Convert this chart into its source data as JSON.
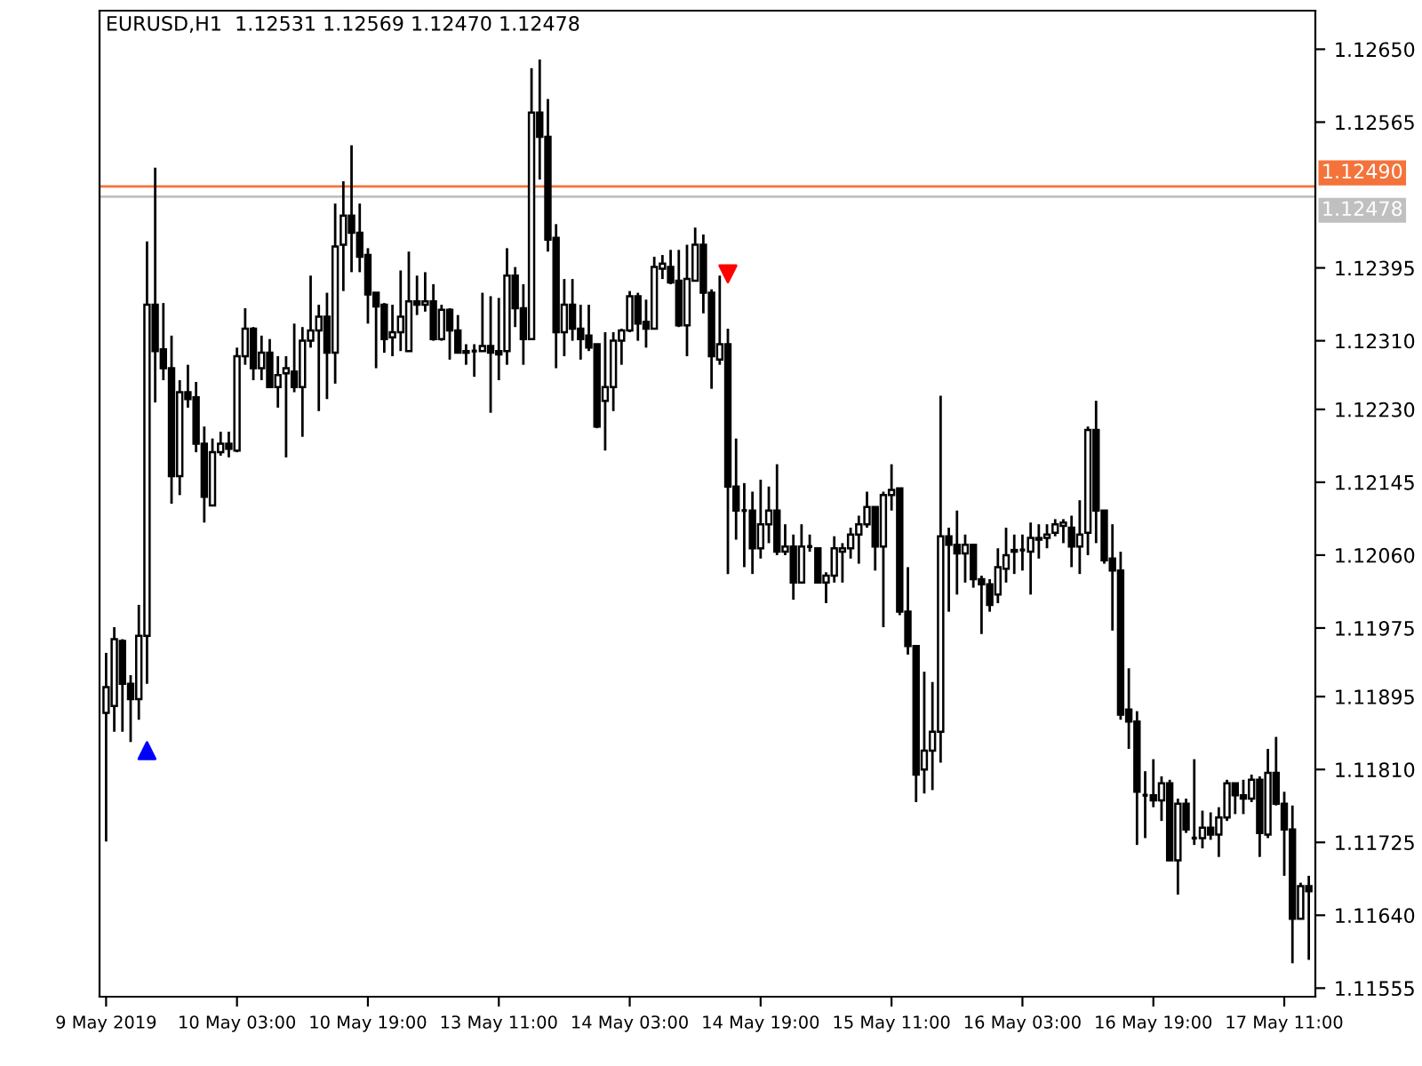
{
  "chart_data": {
    "type": "candlestick",
    "title": "EURUSD,H1  1.12531 1.12569 1.12470 1.12478",
    "categories": [
      "9 May 2019",
      null,
      null,
      null,
      null,
      null,
      null,
      null,
      null,
      null,
      null,
      null,
      null,
      null,
      null,
      null,
      "10 May 03:00",
      null,
      null,
      null,
      null,
      null,
      null,
      null,
      null,
      null,
      null,
      null,
      null,
      null,
      null,
      null,
      "10 May 19:00",
      null,
      null,
      null,
      null,
      null,
      null,
      null,
      null,
      null,
      null,
      null,
      null,
      null,
      null,
      null,
      "13 May 11:00",
      null,
      null,
      null,
      null,
      null,
      null,
      null,
      null,
      null,
      null,
      null,
      null,
      null,
      null,
      null,
      "14 May 03:00",
      null,
      null,
      null,
      null,
      null,
      null,
      null,
      null,
      null,
      null,
      null,
      null,
      null,
      null,
      null,
      "14 May 19:00",
      null,
      null,
      null,
      null,
      null,
      null,
      null,
      null,
      null,
      null,
      null,
      null,
      null,
      null,
      null,
      "15 May 11:00",
      null,
      null,
      null,
      null,
      null,
      null,
      null,
      null,
      null,
      null,
      null,
      null,
      null,
      null,
      null,
      "16 May 03:00",
      null,
      null,
      null,
      null,
      null,
      null,
      null,
      null,
      null,
      null,
      null,
      null,
      null,
      null,
      null,
      "16 May 19:00",
      null,
      null,
      null,
      null,
      null,
      null,
      null,
      null,
      null,
      null,
      null,
      null,
      null,
      null,
      null,
      "17 May 11:00",
      null,
      null,
      null
    ],
    "ohlc": [
      [
        1.11876,
        1.11946,
        1.11726,
        1.11906
      ],
      [
        1.11884,
        1.11976,
        1.11854,
        1.11962
      ],
      [
        1.1196,
        1.11962,
        1.11854,
        1.1191
      ],
      [
        1.1191,
        1.1192,
        1.11842,
        1.11892
      ],
      [
        1.11892,
        1.12002,
        1.11868,
        1.11966
      ],
      [
        1.11966,
        1.12426,
        1.1191,
        1.12352
      ],
      [
        1.12352,
        1.12512,
        1.12238,
        1.12298
      ],
      [
        1.123,
        1.12354,
        1.12264,
        1.12278
      ],
      [
        1.12278,
        1.12316,
        1.1212,
        1.12152
      ],
      [
        1.12152,
        1.12264,
        1.1213,
        1.1225
      ],
      [
        1.1225,
        1.12282,
        1.12232,
        1.12242
      ],
      [
        1.12244,
        1.12262,
        1.1218,
        1.1219
      ],
      [
        1.1219,
        1.1221,
        1.12098,
        1.12128
      ],
      [
        1.12118,
        1.12196,
        1.12118,
        1.1218
      ],
      [
        1.1218,
        1.12204,
        1.12176,
        1.1219
      ],
      [
        1.1219,
        1.12204,
        1.12174,
        1.12184
      ],
      [
        1.12182,
        1.12302,
        1.1218,
        1.12292
      ],
      [
        1.12292,
        1.12348,
        1.12282,
        1.12324
      ],
      [
        1.12324,
        1.12326,
        1.12264,
        1.12278
      ],
      [
        1.12278,
        1.12316,
        1.12264,
        1.12296
      ],
      [
        1.12296,
        1.12312,
        1.12256,
        1.12256
      ],
      [
        1.12256,
        1.12292,
        1.12232,
        1.1227
      ],
      [
        1.12272,
        1.12292,
        1.12174,
        1.12278
      ],
      [
        1.12274,
        1.1233,
        1.1225,
        1.12256
      ],
      [
        1.12256,
        1.12326,
        1.12198,
        1.1231
      ],
      [
        1.1231,
        1.12386,
        1.12302,
        1.12322
      ],
      [
        1.12322,
        1.12352,
        1.12228,
        1.12338
      ],
      [
        1.12338,
        1.12366,
        1.12242,
        1.12296
      ],
      [
        1.12296,
        1.1247,
        1.1226,
        1.1242
      ],
      [
        1.12422,
        1.12496,
        1.12368,
        1.12456
      ],
      [
        1.12456,
        1.12538,
        1.1239,
        1.12436
      ],
      [
        1.12436,
        1.1247,
        1.1239,
        1.12408
      ],
      [
        1.1241,
        1.12418,
        1.1233,
        1.12364
      ],
      [
        1.12366,
        1.12366,
        1.12278,
        1.1235
      ],
      [
        1.12352,
        1.12354,
        1.12296,
        1.12312
      ],
      [
        1.12314,
        1.12352,
        1.12292,
        1.1232
      ],
      [
        1.1232,
        1.12392,
        1.12298,
        1.12338
      ],
      [
        1.12298,
        1.12414,
        1.12298,
        1.12356
      ],
      [
        1.12356,
        1.12386,
        1.1234,
        1.12352
      ],
      [
        1.12352,
        1.1239,
        1.12344,
        1.12356
      ],
      [
        1.12356,
        1.12376,
        1.1231,
        1.12312
      ],
      [
        1.12312,
        1.12352,
        1.1231,
        1.12346
      ],
      [
        1.12346,
        1.12348,
        1.12288,
        1.12322
      ],
      [
        1.12322,
        1.1234,
        1.12296,
        1.12296
      ],
      [
        1.12298,
        1.12306,
        1.12282,
        1.12296
      ],
      [
        1.12298,
        1.12306,
        1.12268,
        1.12298
      ],
      [
        1.12298,
        1.12366,
        1.12298,
        1.12304
      ],
      [
        1.12304,
        1.12362,
        1.12226,
        1.12296
      ],
      [
        1.12298,
        1.1236,
        1.12264,
        1.12294
      ],
      [
        1.12298,
        1.12418,
        1.12282,
        1.12386
      ],
      [
        1.12386,
        1.12396,
        1.12326,
        1.12348
      ],
      [
        1.12348,
        1.12376,
        1.12282,
        1.12312
      ],
      [
        1.12312,
        1.12628,
        1.12312,
        1.12576
      ],
      [
        1.12576,
        1.12638,
        1.12498,
        1.12548
      ],
      [
        1.12548,
        1.12592,
        1.12414,
        1.12428
      ],
      [
        1.1243,
        1.12446,
        1.12278,
        1.1232
      ],
      [
        1.1232,
        1.12382,
        1.12292,
        1.12352
      ],
      [
        1.12352,
        1.12382,
        1.1231,
        1.12324
      ],
      [
        1.12324,
        1.12352,
        1.12288,
        1.12312
      ],
      [
        1.12316,
        1.12352,
        1.12298,
        1.12302
      ],
      [
        1.12306,
        1.12306,
        1.12208,
        1.1221
      ],
      [
        1.1224,
        1.1232,
        1.12182,
        1.12256
      ],
      [
        1.12256,
        1.1232,
        1.12228,
        1.1231
      ],
      [
        1.1231,
        1.12324,
        1.12282,
        1.12322
      ],
      [
        1.12322,
        1.12368,
        1.1232,
        1.12362
      ],
      [
        1.12362,
        1.12366,
        1.1231,
        1.1233
      ],
      [
        1.12332,
        1.12358,
        1.12302,
        1.12324
      ],
      [
        1.12324,
        1.12408,
        1.12324,
        1.12396
      ],
      [
        1.12394,
        1.1241,
        1.12382,
        1.124
      ],
      [
        1.12396,
        1.12416,
        1.12376,
        1.12378
      ],
      [
        1.1238,
        1.12416,
        1.12326,
        1.12328
      ],
      [
        1.12328,
        1.12422,
        1.12292,
        1.12382
      ],
      [
        1.1238,
        1.12442,
        1.1238,
        1.12422
      ],
      [
        1.12422,
        1.12434,
        1.12342,
        1.12366
      ],
      [
        1.12366,
        1.1237,
        1.12254,
        1.12292
      ],
      [
        1.12288,
        1.12386,
        1.12282,
        1.12306
      ],
      [
        1.12306,
        1.12324,
        1.12038,
        1.1214
      ],
      [
        1.1214,
        1.12196,
        1.12078,
        1.12112
      ],
      [
        1.12112,
        1.12144,
        1.12046,
        1.12112
      ],
      [
        1.12112,
        1.12134,
        1.12038,
        1.12068
      ],
      [
        1.12068,
        1.12148,
        1.12056,
        1.12096
      ],
      [
        1.12096,
        1.1214,
        1.12074,
        1.12112
      ],
      [
        1.12112,
        1.12166,
        1.1206,
        1.12064
      ],
      [
        1.12064,
        1.12096,
        1.1206,
        1.1207
      ],
      [
        1.1207,
        1.12084,
        1.12008,
        1.12028
      ],
      [
        1.12028,
        1.12096,
        1.12028,
        1.1207
      ],
      [
        1.1207,
        1.12084,
        1.12064,
        1.1207
      ],
      [
        1.12068,
        1.12068,
        1.12028,
        1.12028
      ],
      [
        1.12028,
        1.1204,
        1.12004,
        1.12036
      ],
      [
        1.12036,
        1.12082,
        1.12028,
        1.12068
      ],
      [
        1.12064,
        1.12074,
        1.12028,
        1.12068
      ],
      [
        1.12068,
        1.12092,
        1.12056,
        1.12084
      ],
      [
        1.12084,
        1.12106,
        1.1205,
        1.12096
      ],
      [
        1.12096,
        1.12134,
        1.12092,
        1.12116
      ],
      [
        1.12116,
        1.12116,
        1.12042,
        1.1207
      ],
      [
        1.1207,
        1.12134,
        1.11976,
        1.1213
      ],
      [
        1.1213,
        1.12166,
        1.12112,
        1.12136
      ],
      [
        1.12138,
        1.12138,
        1.1199,
        1.11994
      ],
      [
        1.11994,
        1.12046,
        1.11944,
        1.11954
      ],
      [
        1.11954,
        1.11954,
        1.11772,
        1.11804
      ],
      [
        1.1181,
        1.11924,
        1.11782,
        1.11832
      ],
      [
        1.11832,
        1.11912,
        1.11786,
        1.11854
      ],
      [
        1.11854,
        1.12246,
        1.11818,
        1.12082
      ],
      [
        1.12082,
        1.12092,
        1.11994,
        1.12072
      ],
      [
        1.12072,
        1.12112,
        1.12014,
        1.12062
      ],
      [
        1.12062,
        1.12084,
        1.12028,
        1.12072
      ],
      [
        1.12072,
        1.12072,
        1.12022,
        1.12032
      ],
      [
        1.12032,
        1.12036,
        1.11968,
        1.12026
      ],
      [
        1.12026,
        1.12032,
        1.11994,
        1.12002
      ],
      [
        1.12014,
        1.12068,
        1.12004,
        1.12046
      ],
      [
        1.12044,
        1.12092,
        1.12028,
        1.1206
      ],
      [
        1.12064,
        1.12084,
        1.12038,
        1.12066
      ],
      [
        1.12066,
        1.12084,
        1.12042,
        1.12066
      ],
      [
        1.12064,
        1.12098,
        1.12014,
        1.1208
      ],
      [
        1.12078,
        1.12096,
        1.12056,
        1.1208
      ],
      [
        1.1208,
        1.12096,
        1.12068,
        1.12084
      ],
      [
        1.12086,
        1.12102,
        1.12082,
        1.12096
      ],
      [
        1.12094,
        1.12102,
        1.12074,
        1.12098
      ],
      [
        1.12092,
        1.12106,
        1.12046,
        1.1207
      ],
      [
        1.1207,
        1.12124,
        1.12038,
        1.12084
      ],
      [
        1.12086,
        1.1221,
        1.1206,
        1.12206
      ],
      [
        1.12206,
        1.1224,
        1.12074,
        1.12112
      ],
      [
        1.12112,
        1.12112,
        1.1205,
        1.12054
      ],
      [
        1.12056,
        1.12096,
        1.11972,
        1.12042
      ],
      [
        1.12042,
        1.12064,
        1.11868,
        1.11874
      ],
      [
        1.1188,
        1.11928,
        1.11834,
        1.11866
      ],
      [
        1.11866,
        1.11878,
        1.11722,
        1.11784
      ],
      [
        1.1178,
        1.11808,
        1.1173,
        1.1178
      ],
      [
        1.1178,
        1.11822,
        1.11766,
        1.11774
      ],
      [
        1.11774,
        1.11802,
        1.1175,
        1.11794
      ],
      [
        1.11794,
        1.11798,
        1.11704,
        1.11704
      ],
      [
        1.11704,
        1.11776,
        1.11664,
        1.1177
      ],
      [
        1.1177,
        1.11776,
        1.11736,
        1.1174
      ],
      [
        1.1173,
        1.11822,
        1.11722,
        1.1173
      ],
      [
        1.1173,
        1.11762,
        1.11718,
        1.11742
      ],
      [
        1.11742,
        1.1176,
        1.11728,
        1.11734
      ],
      [
        1.11734,
        1.11766,
        1.11708,
        1.11754
      ],
      [
        1.11754,
        1.11798,
        1.1175,
        1.11794
      ],
      [
        1.11794,
        1.11794,
        1.11758,
        1.1178
      ],
      [
        1.1178,
        1.11798,
        1.11758,
        1.11776
      ],
      [
        1.11776,
        1.11804,
        1.11772,
        1.11798
      ],
      [
        1.11798,
        1.11802,
        1.11708,
        1.11736
      ],
      [
        1.11734,
        1.11834,
        1.1173,
        1.11806
      ],
      [
        1.11806,
        1.11848,
        1.11768,
        1.1177
      ],
      [
        1.1177,
        1.11784,
        1.11686,
        1.1174
      ],
      [
        1.1174,
        1.11768,
        1.11584,
        1.11636
      ],
      [
        1.11636,
        1.11678,
        1.11636,
        1.11674
      ],
      [
        1.11674,
        1.11686,
        1.11588,
        1.11668
      ]
    ],
    "series": [
      {
        "type": "scatter",
        "color": "#0000ff",
        "marker": "triangle",
        "values": [
          null,
          null,
          null,
          null,
          null,
          1.11832,
          null,
          null,
          null,
          null,
          null,
          null,
          null,
          null,
          null,
          null,
          null,
          null,
          null,
          null,
          null,
          null,
          null,
          null,
          null,
          null,
          null,
          null,
          null,
          null,
          null,
          null,
          null,
          null,
          null,
          null,
          null,
          null,
          null,
          null,
          null,
          null,
          null,
          null,
          null,
          null,
          null,
          null,
          null,
          null,
          null,
          null,
          null,
          null,
          null,
          null,
          null,
          null,
          null,
          null,
          null,
          null,
          null,
          null,
          null,
          null,
          null,
          null,
          null,
          null,
          null,
          null,
          null,
          null,
          null,
          null,
          null,
          null,
          null,
          null,
          null,
          null,
          null,
          null,
          null,
          null,
          null,
          null,
          null,
          null,
          null,
          null,
          null,
          null,
          null,
          null,
          null,
          null,
          null,
          null,
          null,
          null,
          null,
          null,
          null,
          null,
          null,
          null,
          null,
          null,
          null,
          null,
          null,
          null,
          null,
          null,
          null,
          null,
          null,
          null,
          null,
          null,
          null,
          null,
          null,
          null,
          null,
          null,
          null,
          null,
          null,
          null,
          null,
          null,
          null,
          null,
          null,
          null,
          null,
          null,
          null,
          null,
          null,
          null,
          null,
          null,
          null,
          null
        ]
      },
      {
        "type": "scatter",
        "color": "#ff0000",
        "marker": "triangle",
        "values": [
          null,
          null,
          null,
          null,
          null,
          null,
          null,
          null,
          null,
          null,
          null,
          null,
          null,
          null,
          null,
          null,
          null,
          null,
          null,
          null,
          null,
          null,
          null,
          null,
          null,
          null,
          null,
          null,
          null,
          null,
          null,
          null,
          null,
          null,
          null,
          null,
          null,
          null,
          null,
          null,
          null,
          null,
          null,
          null,
          null,
          null,
          null,
          null,
          null,
          null,
          null,
          null,
          null,
          null,
          null,
          null,
          null,
          null,
          null,
          null,
          null,
          null,
          null,
          null,
          null,
          null,
          null,
          null,
          null,
          null,
          null,
          null,
          null,
          null,
          null,
          null,
          1.12388,
          null,
          null,
          null,
          null,
          null,
          null,
          null,
          null,
          null,
          null,
          null,
          null,
          null,
          null,
          null,
          null,
          null,
          null,
          null,
          null,
          null,
          null,
          null,
          null,
          null,
          null,
          null,
          null,
          null,
          null,
          null,
          null,
          null,
          null,
          null,
          null,
          null,
          null,
          null,
          null,
          null,
          null,
          null,
          null,
          null,
          null,
          null,
          null,
          null,
          null,
          null,
          null,
          null,
          null,
          null,
          null,
          null,
          null,
          null,
          null,
          null,
          null,
          null,
          null,
          null,
          null,
          null,
          null,
          null,
          null,
          null
        ]
      }
    ],
    "ylim": [
      1.11545,
      1.12695
    ],
    "yticks": [
      {
        "value": 1.1265,
        "label": "1.12650"
      },
      1.12565,
      1.12395,
      {
        "value": 1.1231,
        "label": "1.12310"
      },
      {
        "value": 1.1223,
        "label": "1.12230"
      },
      1.12145,
      {
        "value": 1.1206,
        "label": "1.12060"
      },
      1.11975,
      1.11895,
      {
        "value": 1.1181,
        "label": "1.11810"
      },
      1.11725,
      {
        "value": 1.1164,
        "label": "1.11640"
      },
      1.11555
    ],
    "ref_lines": [
      {
        "axis": "y",
        "value": 1.1249,
        "label": "1.12490",
        "color": "#f4733b"
      },
      {
        "axis": "y",
        "value": 1.12478,
        "label": "1.12478",
        "color": "#c0c0c0"
      }
    ],
    "grid": false,
    "legend": false
  }
}
